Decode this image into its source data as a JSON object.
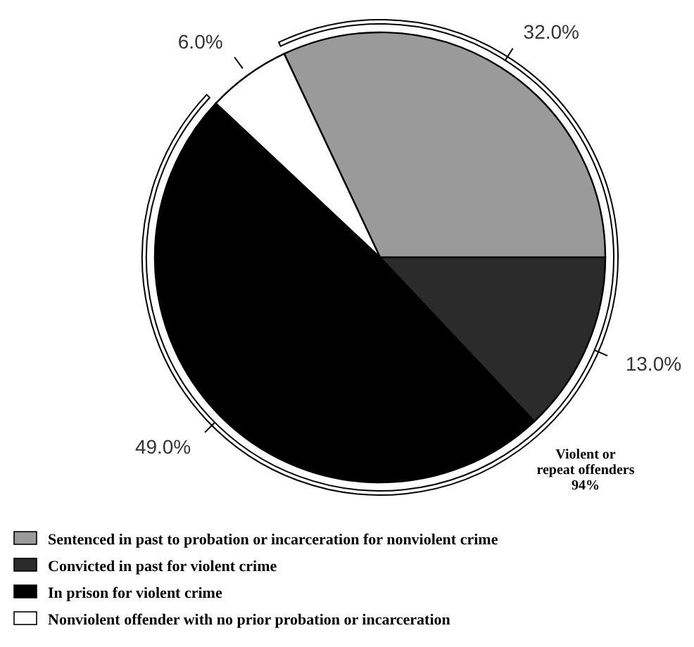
{
  "chart_data": {
    "type": "pie",
    "categories": [
      "Sentenced in past to probation or incarceration for nonviolent crime",
      "Convicted in past for violent crime",
      "In prison for violent crime",
      "Nonviolent offender with no prior probation or incarceration"
    ],
    "values": [
      32,
      13,
      49,
      6
    ],
    "colors": [
      "#9a9a9a",
      "#2b2b2b",
      "#000000",
      "#ffffff"
    ],
    "value_labels": [
      "32.0%",
      "13.0%",
      "49.0%",
      "6.0%"
    ],
    "annotations": [
      "Violent or\nrepeat offenders\n94%"
    ],
    "legend": "bottom left"
  }
}
